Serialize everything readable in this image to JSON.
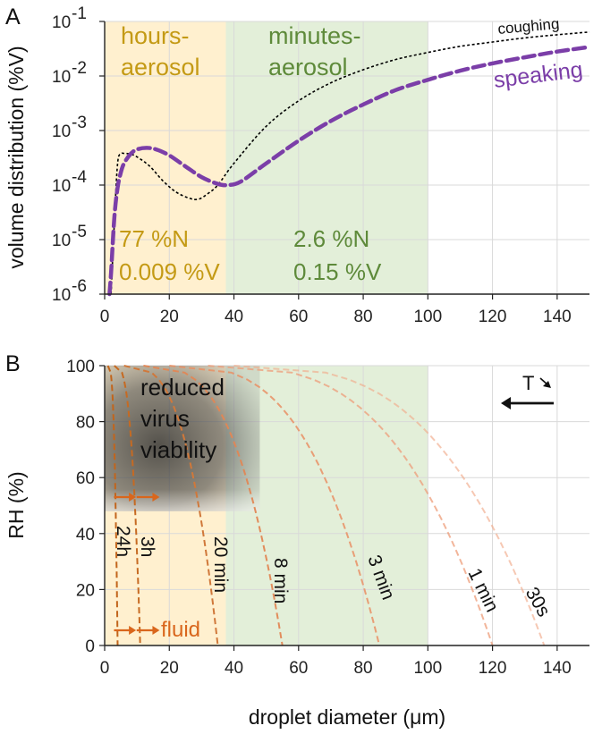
{
  "chart_data": [
    {
      "type": "line",
      "panel_label": "A",
      "ylabel": "volume distribution (%V)",
      "yscale": "log",
      "xlim": [
        0,
        150
      ],
      "ylim": [
        1e-06,
        0.1
      ],
      "x_ticks": [
        "0",
        "20",
        "40",
        "60",
        "80",
        "100",
        "120",
        "140"
      ],
      "y_ticks": [
        {
          "base": "10",
          "exp": "-6"
        },
        {
          "base": "10",
          "exp": "-5"
        },
        {
          "base": "10",
          "exp": "-4"
        },
        {
          "base": "10",
          "exp": "-3"
        },
        {
          "base": "10",
          "exp": "-2"
        },
        {
          "base": "10",
          "exp": "-1"
        }
      ],
      "regions": [
        {
          "name": "hours-aerosol",
          "label_lines": [
            "hours-",
            "aerosol"
          ],
          "x_range": [
            0,
            37.5
          ],
          "color": "#fff0cf",
          "text_color": "#c49a15",
          "stats": [
            "77 %N",
            "0.009 %V"
          ]
        },
        {
          "name": "minutes-aerosol",
          "label_lines": [
            "minutes-",
            "aerosol"
          ],
          "x_range": [
            37.5,
            100
          ],
          "color": "#e3efd9",
          "text_color": "#5e8a3a",
          "stats": [
            "2.6 %N",
            "0.15 %V"
          ]
        }
      ],
      "series": [
        {
          "name": "coughing",
          "style": "dotted",
          "color": "#000000",
          "x": [
            2,
            3,
            4,
            5,
            6,
            8,
            10,
            14,
            18,
            22,
            26,
            29,
            32,
            35,
            40,
            50,
            60,
            70,
            80,
            90,
            100,
            110,
            120,
            130,
            140,
            150
          ],
          "y": [
            1e-06,
            2e-05,
            0.00025,
            0.00037,
            0.00038,
            0.00037,
            0.00033,
            0.00022,
            0.00012,
            7.5e-05,
            5.8e-05,
            5.5e-05,
            7e-05,
            0.0001,
            0.00025,
            0.0012,
            0.0035,
            0.0075,
            0.013,
            0.02,
            0.027,
            0.035,
            0.042,
            0.05,
            0.057,
            0.064
          ]
        },
        {
          "name": "speaking",
          "style": "dashed",
          "color": "#7b3ea8",
          "x": [
            1.5,
            2,
            3,
            4,
            5,
            6,
            8,
            10,
            13,
            16,
            20,
            25,
            30,
            35,
            38,
            42,
            50,
            60,
            70,
            80,
            90,
            100,
            110,
            120,
            130,
            140,
            150
          ],
          "y": [
            1e-06,
            2.5e-06,
            2.5e-05,
            9e-05,
            0.00017,
            0.00025,
            0.00037,
            0.00045,
            0.00048,
            0.00045,
            0.00035,
            0.00022,
            0.00014,
            0.000105,
            0.0001,
            0.000115,
            0.00025,
            0.00065,
            0.0015,
            0.003,
            0.0055,
            0.0085,
            0.0125,
            0.017,
            0.022,
            0.028,
            0.034
          ]
        }
      ]
    },
    {
      "type": "line",
      "panel_label": "B",
      "ylabel": "RH (%)",
      "xlabel": "droplet diameter (μm)",
      "xlim": [
        0,
        150
      ],
      "ylim": [
        0,
        100
      ],
      "x_ticks": [
        "0",
        "20",
        "40",
        "60",
        "80",
        "100",
        "120",
        "140"
      ],
      "y_ticks": [
        "0",
        "20",
        "40",
        "60",
        "80",
        "100"
      ],
      "regions": [
        {
          "name": "hours-aerosol",
          "x_range": [
            0,
            37.5
          ],
          "color": "#fff0cf"
        },
        {
          "name": "minutes-aerosol",
          "x_range": [
            37.5,
            100
          ],
          "color": "#e3efd9"
        },
        {
          "name": "reduced-viability",
          "x_range": [
            0,
            48
          ],
          "y_range": [
            48,
            100
          ],
          "color": "#333333"
        }
      ],
      "annotation": {
        "lines": [
          "reduced",
          "virus",
          "viability"
        ]
      },
      "fluid_label": "fluid",
      "temperature_label": "T",
      "series": [
        {
          "name": "24h",
          "label": "24h",
          "x_at_rh0": 4,
          "x_at_rh100": 1,
          "color": "#c2651c",
          "opacity": 1.0
        },
        {
          "name": "3h",
          "label": "3h",
          "x_at_rh0": 11,
          "x_at_rh100": 3,
          "color": "#c66a22",
          "opacity": 1.0
        },
        {
          "name": "20 min",
          "label": "20 min",
          "x_at_rh0": 35,
          "x_at_rh100": 6,
          "color": "#d0783a",
          "opacity": 1.0
        },
        {
          "name": "8 min",
          "label": "8 min",
          "x_at_rh0": 55,
          "x_at_rh100": 12,
          "color": "#e28654",
          "opacity": 0.95
        },
        {
          "name": "3 min",
          "label": "3 min",
          "x_at_rh0": 85,
          "x_at_rh100": 20,
          "color": "#e98f64",
          "opacity": 0.85
        },
        {
          "name": "1 min",
          "label": "1 min",
          "x_at_rh0": 120,
          "x_at_rh100": 32,
          "color": "#ee9c78",
          "opacity": 0.75
        },
        {
          "name": "30s",
          "label": "30s",
          "x_at_rh0": 136,
          "x_at_rh100": 40,
          "color": "#f1ab8b",
          "opacity": 0.65
        }
      ]
    }
  ]
}
